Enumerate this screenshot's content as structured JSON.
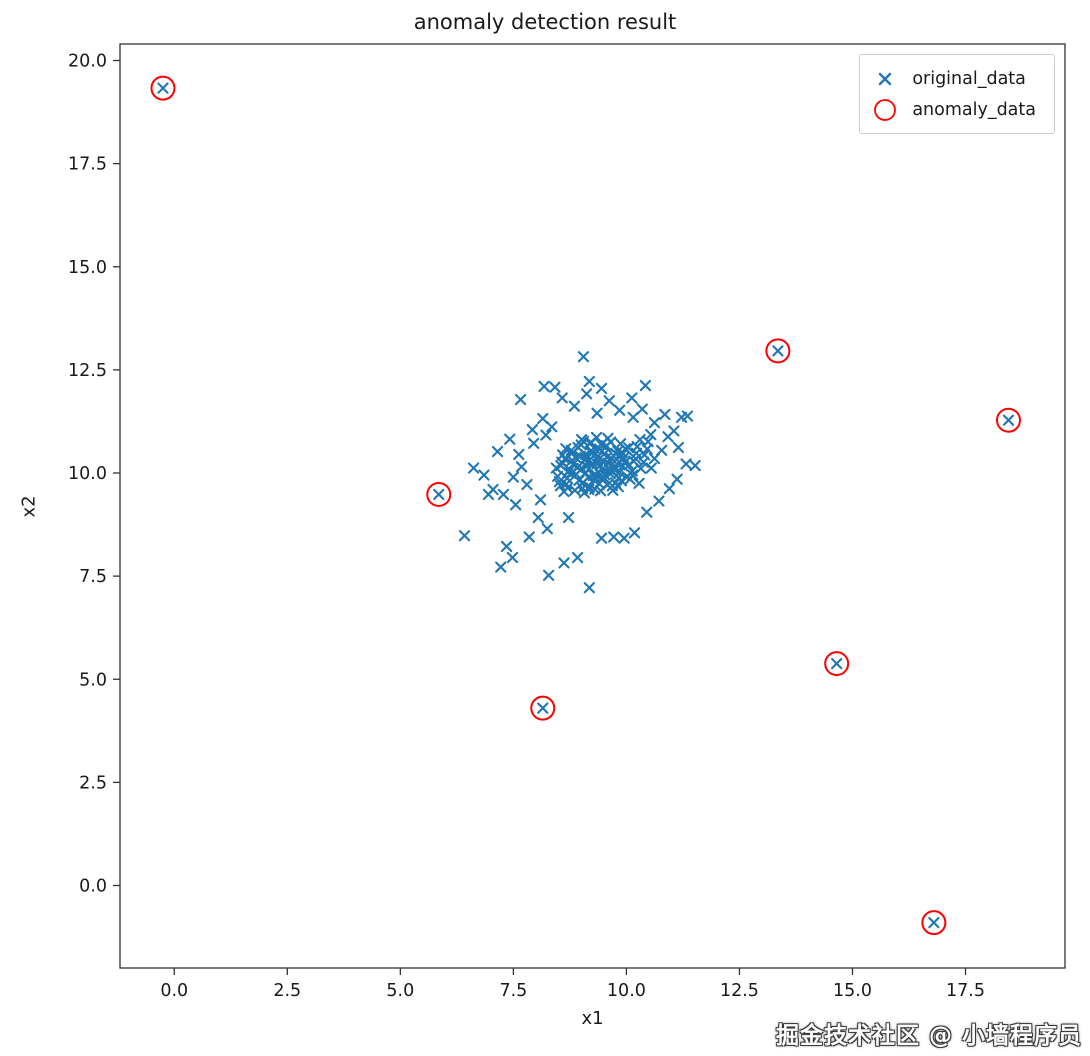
{
  "title": "anomaly detection result",
  "watermark": "掘金技术社区 @ 小墙程序员",
  "chart_data": {
    "type": "scatter",
    "title": "anomaly detection result",
    "xlabel": "x1",
    "ylabel": "x2",
    "xlim": [
      -1.2,
      19.7
    ],
    "ylim": [
      -2.0,
      20.4
    ],
    "grid": false,
    "x_ticks": [
      0.0,
      2.5,
      5.0,
      7.5,
      10.0,
      12.5,
      15.0,
      17.5
    ],
    "x_tick_labels": [
      "0.0",
      "2.5",
      "5.0",
      "7.5",
      "10.0",
      "12.5",
      "15.0",
      "17.5"
    ],
    "y_ticks": [
      0.0,
      2.5,
      5.0,
      7.5,
      10.0,
      12.5,
      15.0,
      17.5,
      20.0
    ],
    "y_tick_labels": [
      "0.0",
      "2.5",
      "5.0",
      "7.5",
      "10.0",
      "12.5",
      "15.0",
      "17.5",
      "20.0"
    ],
    "legend": {
      "position": "upper right",
      "entries": [
        {
          "label": "original_data",
          "marker": "x",
          "color": "#1f77b4"
        },
        {
          "label": "anomaly_data",
          "marker": "circle",
          "color": "#ff0000"
        }
      ]
    },
    "series": [
      {
        "name": "original_data",
        "marker": "x",
        "color": "#1f77b4",
        "points": [
          [
            8.62,
            9.55
          ],
          [
            8.71,
            10.02
          ],
          [
            8.8,
            10.31
          ],
          [
            8.95,
            9.82
          ],
          [
            9.02,
            10.11
          ],
          [
            9.1,
            10.45
          ],
          [
            9.18,
            9.66
          ],
          [
            9.25,
            10.23
          ],
          [
            9.33,
            9.95
          ],
          [
            9.41,
            10.58
          ],
          [
            9.5,
            10.04
          ],
          [
            9.58,
            9.71
          ],
          [
            9.66,
            10.36
          ],
          [
            9.75,
            10.12
          ],
          [
            9.83,
            9.88
          ],
          [
            9.91,
            10.49
          ],
          [
            8.55,
            10.18
          ],
          [
            8.67,
            9.73
          ],
          [
            8.78,
            10.55
          ],
          [
            8.89,
            9.97
          ],
          [
            9.0,
            10.68
          ],
          [
            9.07,
            9.52
          ],
          [
            9.14,
            10.27
          ],
          [
            9.22,
            10.74
          ],
          [
            9.3,
            9.61
          ],
          [
            9.38,
            10.41
          ],
          [
            9.46,
            9.86
          ],
          [
            9.54,
            10.63
          ],
          [
            9.62,
            10.09
          ],
          [
            9.7,
            9.58
          ],
          [
            9.79,
            10.33
          ],
          [
            9.87,
            10.71
          ],
          [
            8.48,
            9.92
          ],
          [
            8.59,
            10.44
          ],
          [
            8.7,
            9.64
          ],
          [
            8.82,
            10.21
          ],
          [
            8.93,
            10.62
          ],
          [
            9.04,
            9.77
          ],
          [
            9.12,
            10.16
          ],
          [
            9.2,
            10.52
          ],
          [
            9.28,
            9.83
          ],
          [
            9.36,
            10.3
          ],
          [
            9.44,
            10.69
          ],
          [
            9.52,
            9.96
          ],
          [
            9.6,
            10.24
          ],
          [
            9.69,
            9.69
          ],
          [
            9.77,
            10.47
          ],
          [
            9.85,
            10.02
          ],
          [
            9.94,
            10.37
          ],
          [
            10.02,
            9.91
          ],
          [
            8.52,
            9.79
          ],
          [
            8.64,
            10.34
          ],
          [
            8.75,
            10.08
          ],
          [
            8.86,
            9.58
          ],
          [
            8.98,
            10.4
          ],
          [
            9.05,
            10.77
          ],
          [
            9.16,
            9.89
          ],
          [
            9.24,
            10.19
          ],
          [
            9.32,
            10.57
          ],
          [
            9.4,
            9.74
          ],
          [
            9.48,
            10.28
          ],
          [
            9.56,
            10.66
          ],
          [
            9.64,
            9.98
          ],
          [
            9.72,
            10.14
          ],
          [
            9.81,
            10.53
          ],
          [
            9.89,
            9.81
          ],
          [
            9.97,
            10.26
          ],
          [
            10.05,
            10.61
          ],
          [
            10.13,
            10.05
          ],
          [
            10.21,
            10.34
          ],
          [
            8.57,
            10.26
          ],
          [
            8.69,
            9.87
          ],
          [
            8.81,
            10.49
          ],
          [
            8.92,
            10.13
          ],
          [
            9.03,
            9.63
          ],
          [
            9.11,
            10.35
          ],
          [
            9.19,
            10.72
          ],
          [
            9.27,
            9.94
          ],
          [
            9.35,
            10.22
          ],
          [
            9.43,
            9.57
          ],
          [
            9.51,
            10.46
          ],
          [
            9.59,
            10.84
          ],
          [
            9.67,
            10.06
          ],
          [
            9.76,
            9.76
          ],
          [
            9.84,
            10.42
          ],
          [
            9.92,
            10.17
          ],
          [
            10.0,
            10.56
          ],
          [
            10.08,
            9.85
          ],
          [
            10.16,
            10.29
          ],
          [
            10.24,
            10.64
          ],
          [
            10.32,
            10.11
          ],
          [
            10.4,
            10.44
          ],
          [
            10.48,
            10.76
          ],
          [
            8.45,
            10.12
          ],
          [
            8.54,
            9.69
          ],
          [
            8.66,
            10.59
          ],
          [
            8.77,
            9.99
          ],
          [
            8.88,
            10.37
          ],
          [
            9.01,
            10.81
          ],
          [
            9.09,
            10.0
          ],
          [
            9.17,
            9.6
          ],
          [
            9.26,
            10.5
          ],
          [
            9.34,
            10.86
          ],
          [
            9.42,
            10.18
          ],
          [
            9.49,
            9.9
          ],
          [
            9.57,
            10.38
          ],
          [
            9.65,
            10.75
          ],
          [
            9.74,
            10.07
          ],
          [
            9.82,
            9.67
          ],
          [
            9.9,
            10.31
          ],
          [
            9.98,
            10.59
          ],
          [
            10.06,
            10.2
          ],
          [
            10.14,
            9.95
          ],
          [
            10.22,
            10.48
          ],
          [
            10.3,
            10.81
          ],
          [
            10.38,
            10.26
          ],
          [
            10.46,
            10.58
          ],
          [
            10.54,
            10.93
          ],
          [
            10.62,
            10.35
          ],
          [
            7.15,
            10.52
          ],
          [
            7.28,
            9.48
          ],
          [
            7.42,
            10.82
          ],
          [
            7.55,
            9.23
          ],
          [
            7.68,
            10.15
          ],
          [
            7.8,
            9.72
          ],
          [
            7.92,
            11.05
          ],
          [
            8.05,
            8.92
          ],
          [
            8.15,
            11.32
          ],
          [
            8.25,
            8.65
          ],
          [
            8.35,
            11.12
          ],
          [
            8.1,
            9.35
          ],
          [
            7.5,
            9.9
          ],
          [
            7.05,
            9.6
          ],
          [
            6.95,
            9.48
          ],
          [
            6.62,
            10.12
          ],
          [
            6.42,
            8.48
          ],
          [
            7.22,
            7.72
          ],
          [
            7.35,
            8.22
          ],
          [
            7.48,
            7.95
          ],
          [
            8.28,
            7.52
          ],
          [
            8.62,
            7.82
          ],
          [
            9.18,
            7.22
          ],
          [
            8.92,
            7.95
          ],
          [
            9.45,
            8.42
          ],
          [
            9.72,
            8.45
          ],
          [
            9.95,
            8.42
          ],
          [
            10.18,
            8.55
          ],
          [
            10.45,
            9.05
          ],
          [
            10.72,
            9.32
          ],
          [
            10.95,
            9.62
          ],
          [
            11.12,
            9.85
          ],
          [
            11.32,
            10.22
          ],
          [
            11.52,
            10.18
          ],
          [
            11.05,
            11.02
          ],
          [
            11.22,
            11.35
          ],
          [
            10.85,
            11.42
          ],
          [
            10.62,
            11.22
          ],
          [
            10.35,
            11.55
          ],
          [
            10.12,
            11.82
          ],
          [
            9.85,
            11.52
          ],
          [
            9.62,
            11.75
          ],
          [
            9.35,
            11.45
          ],
          [
            9.12,
            11.92
          ],
          [
            8.85,
            11.62
          ],
          [
            8.58,
            11.82
          ],
          [
            8.42,
            12.08
          ],
          [
            9.18,
            12.22
          ],
          [
            9.05,
            12.82
          ],
          [
            9.45,
            12.05
          ],
          [
            10.42,
            12.12
          ],
          [
            10.15,
            11.35
          ],
          [
            7.85,
            8.45
          ],
          [
            8.72,
            8.92
          ],
          [
            10.28,
            9.75
          ],
          [
            10.55,
            10.12
          ],
          [
            10.78,
            10.55
          ],
          [
            10.92,
            10.88
          ],
          [
            11.15,
            10.62
          ],
          [
            11.35,
            11.38
          ],
          [
            7.62,
            10.45
          ],
          [
            7.95,
            10.72
          ],
          [
            8.22,
            10.92
          ],
          [
            6.85,
            9.95
          ],
          [
            7.66,
            11.78
          ],
          [
            8.18,
            12.1
          ]
        ]
      },
      {
        "name": "anomaly_data",
        "marker": "circle",
        "color": "#ff0000",
        "points": [
          [
            -0.25,
            19.33
          ],
          [
            13.35,
            12.96
          ],
          [
            18.45,
            11.28
          ],
          [
            5.85,
            9.48
          ],
          [
            14.65,
            5.38
          ],
          [
            8.15,
            4.3
          ],
          [
            16.8,
            -0.9
          ]
        ]
      }
    ]
  }
}
